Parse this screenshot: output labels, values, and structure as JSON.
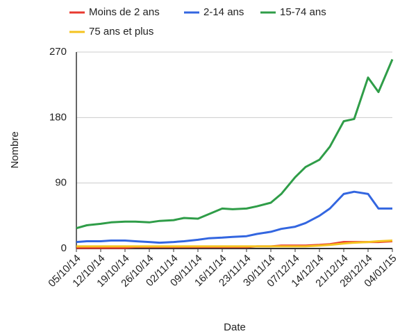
{
  "chart_data": {
    "type": "line",
    "x_label": "Date",
    "y_label": "Nombre",
    "x": [
      "05/10/14",
      "08/10/14",
      "12/10/14",
      "15/10/14",
      "19/10/14",
      "22/10/14",
      "26/10/14",
      "29/10/14",
      "02/11/14",
      "05/11/14",
      "09/11/14",
      "12/11/14",
      "16/11/14",
      "19/11/14",
      "23/11/14",
      "26/11/14",
      "30/11/14",
      "03/12/14",
      "07/12/14",
      "10/12/14",
      "14/12/14",
      "17/12/14",
      "21/12/14",
      "24/12/14",
      "28/12/14",
      "31/12/14",
      "04/01/15"
    ],
    "xlim": [
      "05/10/14",
      "04/01/15"
    ],
    "xticks": [
      "05/10/14",
      "12/10/14",
      "19/10/14",
      "26/10/14",
      "02/11/14",
      "09/11/14",
      "16/11/14",
      "23/11/14",
      "30/11/14",
      "07/12/14",
      "14/12/14",
      "21/12/14",
      "28/12/14",
      "04/01/15"
    ],
    "ylim": [
      0,
      270
    ],
    "yticks": [
      0,
      90,
      180,
      270
    ],
    "grid": true,
    "legend": "top",
    "series": [
      {
        "name": "Moins de 2 ans",
        "color": "#e8392f",
        "values": [
          1,
          1,
          1,
          1,
          1,
          2,
          2,
          2,
          2,
          2,
          2,
          2,
          2,
          2,
          2,
          3,
          3,
          4,
          4,
          4,
          5,
          6,
          9,
          9,
          9,
          9,
          10
        ]
      },
      {
        "name": "2-14 ans",
        "color": "#3366e0",
        "values": [
          9,
          10,
          10,
          11,
          11,
          10,
          9,
          8,
          9,
          10,
          12,
          14,
          15,
          16,
          17,
          20,
          23,
          27,
          30,
          35,
          45,
          55,
          75,
          78,
          75,
          55,
          55
        ]
      },
      {
        "name": "15-74 ans",
        "color": "#2f9d48",
        "values": [
          28,
          32,
          34,
          36,
          37,
          37,
          36,
          38,
          39,
          42,
          41,
          47,
          55,
          54,
          55,
          58,
          63,
          75,
          98,
          112,
          122,
          140,
          175,
          178,
          235,
          215,
          260
        ]
      },
      {
        "name": "75 ans et plus",
        "color": "#f4c31f",
        "values": [
          3,
          3,
          3,
          3,
          3,
          3,
          3,
          3,
          3,
          3,
          3,
          3,
          3,
          3,
          3,
          3,
          3,
          3,
          3,
          3,
          4,
          5,
          7,
          8,
          9,
          10,
          11
        ]
      }
    ]
  }
}
